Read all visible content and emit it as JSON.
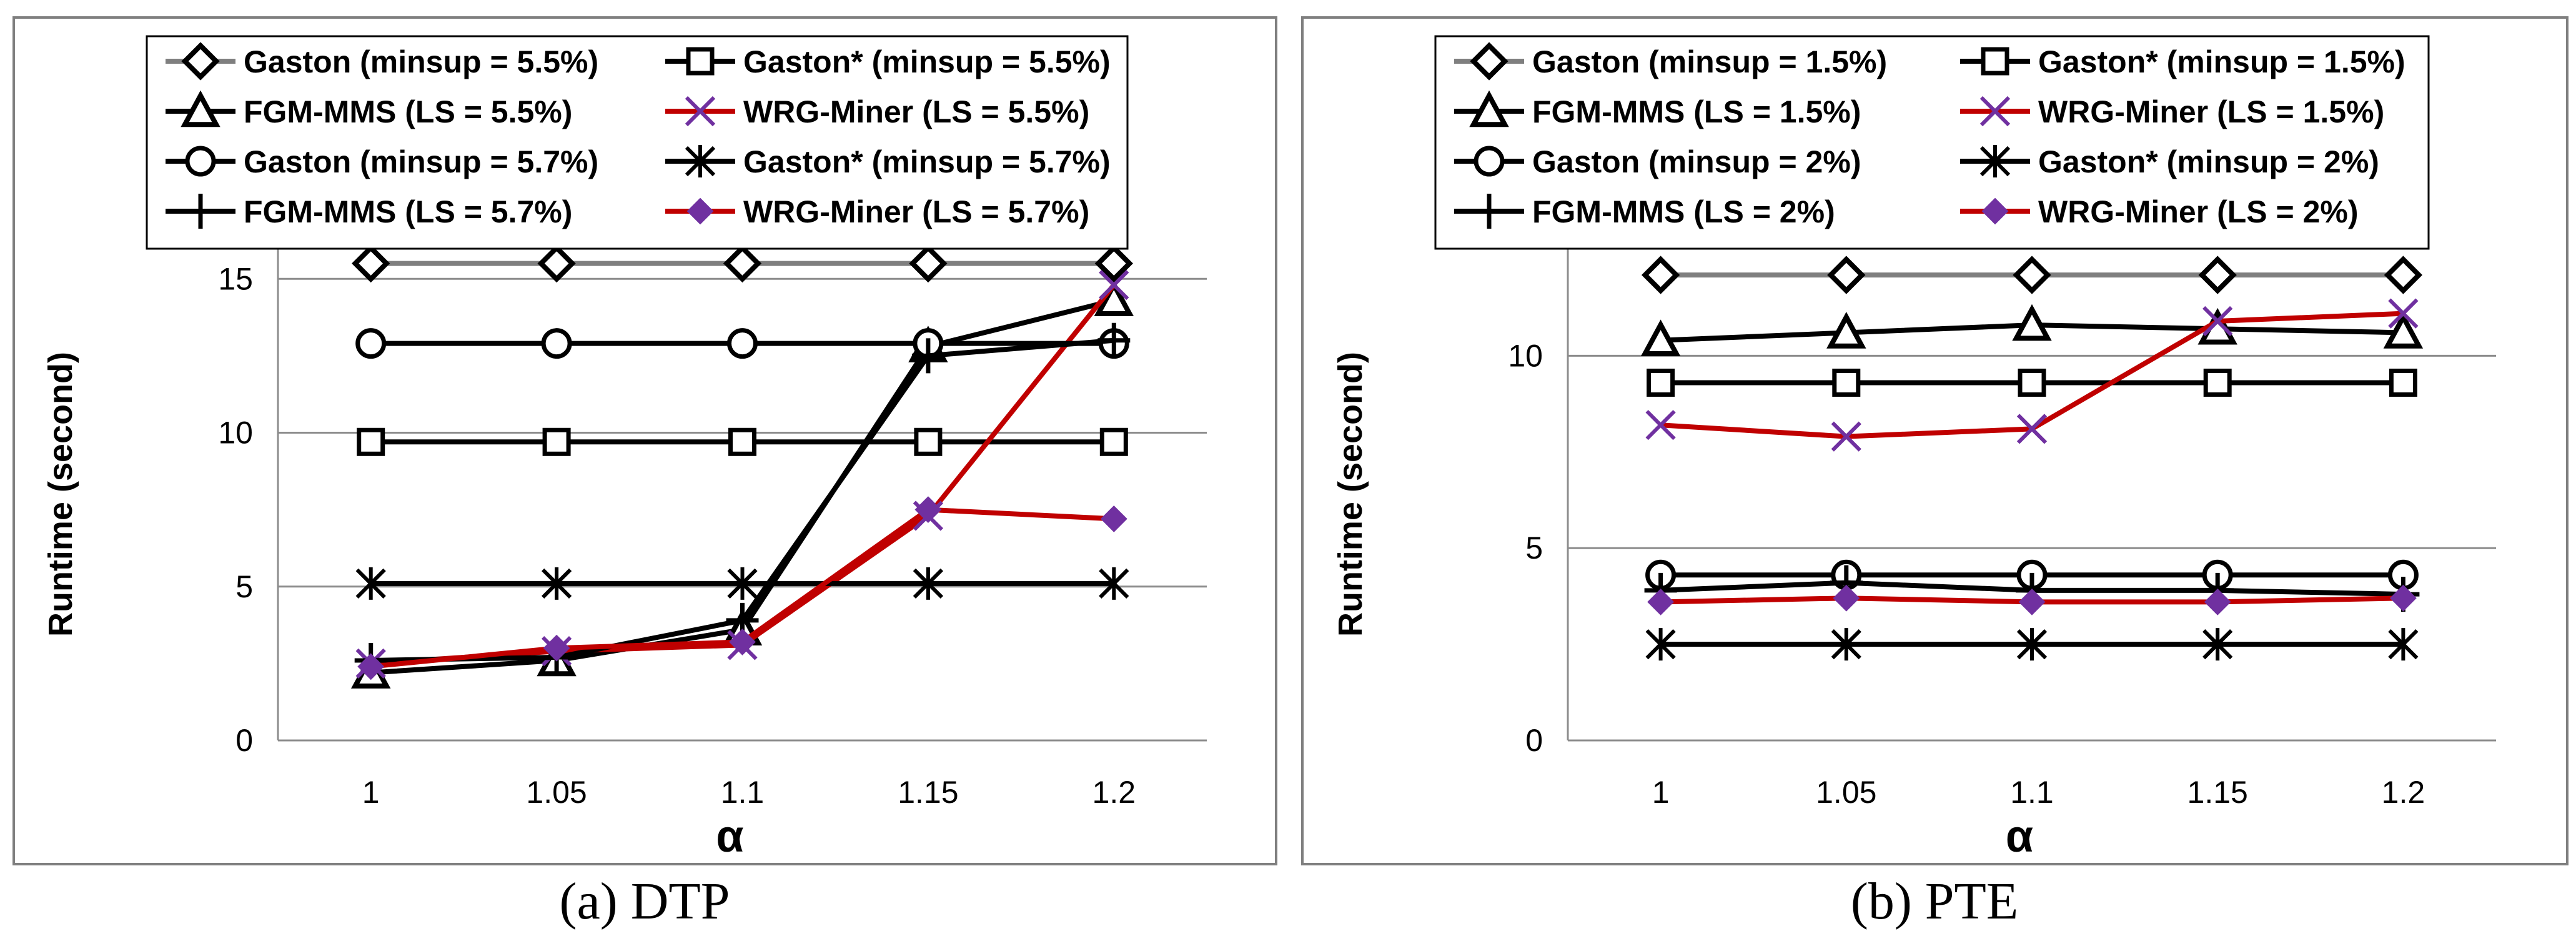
{
  "chart_data": [
    {
      "type": "line",
      "panel_caption": "(a) DTP",
      "xlabel": "α",
      "ylabel": "Runtime (second)",
      "categories": [
        "1",
        "1.05",
        "1.1",
        "1.15",
        "1.2"
      ],
      "yticks": [
        "0",
        "5",
        "10",
        "15"
      ],
      "ylim": [
        0,
        16
      ],
      "grid": "horizontal",
      "legend_position": "top",
      "series": [
        {
          "name": "Gaston (minsup = 5.5%)",
          "values": [
            15.5,
            15.5,
            15.5,
            15.5,
            15.5
          ],
          "color": "#7f7f7f",
          "marker": "diamond-open"
        },
        {
          "name": "Gaston* (minsup = 5.5%)",
          "values": [
            9.7,
            9.7,
            9.7,
            9.7,
            9.7
          ],
          "color": "#000000",
          "marker": "square-open"
        },
        {
          "name": "FGM-MMS (LS = 5.5%)",
          "values": [
            2.2,
            2.6,
            3.6,
            12.8,
            14.3
          ],
          "color": "#000000",
          "marker": "triangle-open"
        },
        {
          "name": "WRG-Miner (LS = 5.5%)",
          "values": [
            2.5,
            2.9,
            3.1,
            7.3,
            14.8
          ],
          "color": "#c00000",
          "marker": "x",
          "marker_color": "#7030a0"
        },
        {
          "name": "Gaston (minsup = 5.7%)",
          "values": [
            12.9,
            12.9,
            12.9,
            12.9,
            12.9
          ],
          "color": "#000000",
          "marker": "circle-open"
        },
        {
          "name": "Gaston* (minsup = 5.7%)",
          "values": [
            5.1,
            5.1,
            5.1,
            5.1,
            5.1
          ],
          "color": "#000000",
          "marker": "asterisk"
        },
        {
          "name": "FGM-MMS (LS = 5.7%)",
          "values": [
            2.6,
            2.7,
            3.9,
            12.5,
            13.0
          ],
          "color": "#000000",
          "marker": "plus"
        },
        {
          "name": "WRG-Miner (LS = 5.7%)",
          "values": [
            2.4,
            3.0,
            3.2,
            7.5,
            7.2
          ],
          "color": "#c00000",
          "marker": "diamond-filled",
          "marker_color": "#7030a0"
        }
      ]
    },
    {
      "type": "line",
      "panel_caption": "(b) PTE",
      "xlabel": "α",
      "ylabel": "Runtime (second)",
      "categories": [
        "1",
        "1.05",
        "1.1",
        "1.15",
        "1.2"
      ],
      "yticks": [
        "0",
        "5",
        "10"
      ],
      "ylim": [
        0,
        12.8
      ],
      "grid": "horizontal",
      "legend_position": "top",
      "series": [
        {
          "name": "Gaston (minsup = 1.5%)",
          "values": [
            12.1,
            12.1,
            12.1,
            12.1,
            12.1
          ],
          "color": "#7f7f7f",
          "marker": "diamond-open"
        },
        {
          "name": "Gaston* (minsup = 1.5%)",
          "values": [
            9.3,
            9.3,
            9.3,
            9.3,
            9.3
          ],
          "color": "#000000",
          "marker": "square-open"
        },
        {
          "name": "FGM-MMS (LS = 1.5%)",
          "values": [
            10.4,
            10.6,
            10.8,
            10.7,
            10.6
          ],
          "color": "#000000",
          "marker": "triangle-open"
        },
        {
          "name": "WRG-Miner (LS = 1.5%)",
          "values": [
            8.2,
            7.9,
            8.1,
            10.9,
            11.1
          ],
          "color": "#c00000",
          "marker": "x",
          "marker_color": "#7030a0"
        },
        {
          "name": "Gaston (minsup = 2%)",
          "values": [
            4.3,
            4.3,
            4.3,
            4.3,
            4.3
          ],
          "color": "#000000",
          "marker": "circle-open"
        },
        {
          "name": "Gaston* (minsup = 2%)",
          "values": [
            2.5,
            2.5,
            2.5,
            2.5,
            2.5
          ],
          "color": "#000000",
          "marker": "asterisk"
        },
        {
          "name": "FGM-MMS (LS = 2%)",
          "values": [
            3.9,
            4.1,
            3.9,
            3.9,
            3.8
          ],
          "color": "#000000",
          "marker": "plus"
        },
        {
          "name": "WRG-Miner (LS = 2%)",
          "values": [
            3.6,
            3.7,
            3.6,
            3.6,
            3.7
          ],
          "color": "#c00000",
          "marker": "diamond-filled",
          "marker_color": "#7030a0"
        }
      ]
    }
  ]
}
